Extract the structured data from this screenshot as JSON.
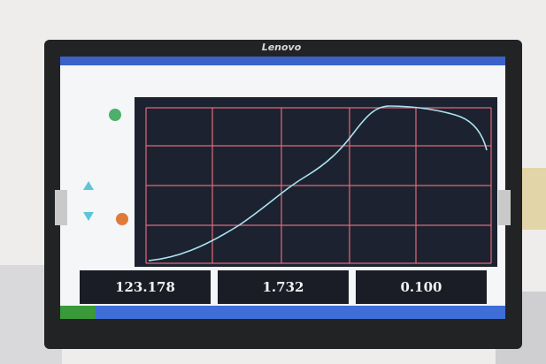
{
  "monitor": {
    "brand": "Lenovo"
  },
  "readouts": [
    "123.178",
    "1.732",
    "0.100"
  ]
}
